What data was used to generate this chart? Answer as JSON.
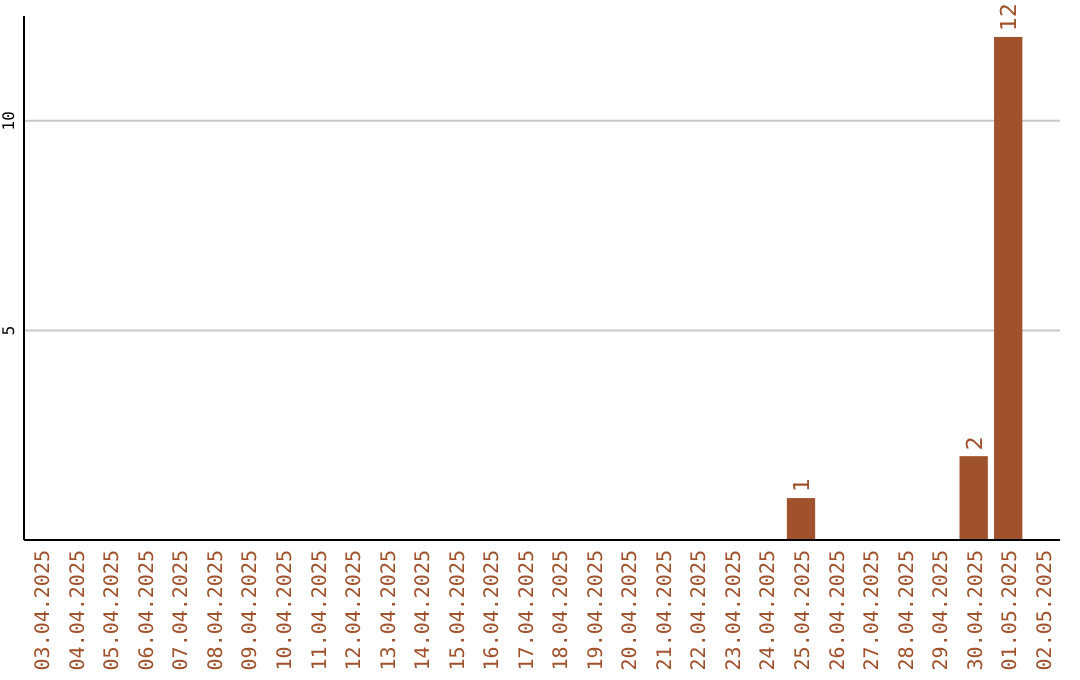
{
  "chart_data": {
    "type": "bar",
    "categories": [
      "03.04.2025",
      "04.04.2025",
      "05.04.2025",
      "06.04.2025",
      "07.04.2025",
      "08.04.2025",
      "09.04.2025",
      "10.04.2025",
      "11.04.2025",
      "12.04.2025",
      "13.04.2025",
      "14.04.2025",
      "15.04.2025",
      "16.04.2025",
      "17.04.2025",
      "18.04.2025",
      "19.04.2025",
      "20.04.2025",
      "21.04.2025",
      "22.04.2025",
      "23.04.2025",
      "24.04.2025",
      "25.04.2025",
      "26.04.2025",
      "27.04.2025",
      "28.04.2025",
      "29.04.2025",
      "30.04.2025",
      "01.05.2025",
      "02.05.2025"
    ],
    "values": [
      0,
      0,
      0,
      0,
      0,
      0,
      0,
      0,
      0,
      0,
      0,
      0,
      0,
      0,
      0,
      0,
      0,
      0,
      0,
      0,
      0,
      0,
      1,
      0,
      0,
      0,
      0,
      2,
      12,
      0
    ],
    "value_labels": [
      null,
      null,
      null,
      null,
      null,
      null,
      null,
      null,
      null,
      null,
      null,
      null,
      null,
      null,
      null,
      null,
      null,
      null,
      null,
      null,
      null,
      null,
      "1",
      null,
      null,
      null,
      null,
      "2",
      "12",
      null
    ],
    "color": "#a0522d",
    "ylim": [
      0,
      12.5
    ],
    "yticks": [
      5,
      10
    ],
    "grid": "y"
  }
}
